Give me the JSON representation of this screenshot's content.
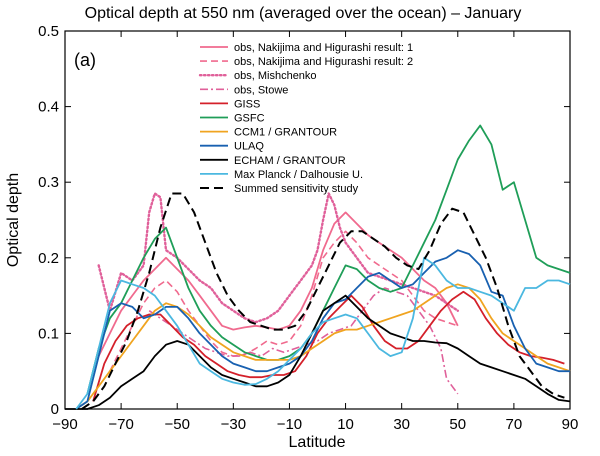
{
  "chart_data": {
    "type": "line",
    "title": "Optical depth at 550 nm (averaged over the ocean) – January",
    "panel_label": "(a)",
    "xlabel": "Latitude",
    "ylabel": "Optical depth",
    "xlim": [
      -90,
      90
    ],
    "ylim": [
      0,
      0.5
    ],
    "xticks": [
      -90,
      -70,
      -50,
      -30,
      -10,
      10,
      30,
      50,
      70,
      90
    ],
    "xtick_labels": [
      "−90",
      "−70",
      "−50",
      "−30",
      "−10",
      "10",
      "30",
      "50",
      "70",
      "90"
    ],
    "yticks": [
      0,
      0.1,
      0.2,
      0.3,
      0.4,
      0.5
    ],
    "ytick_labels": [
      "0",
      "0.1",
      "0.2",
      "0.3",
      "0.4",
      "0.5"
    ],
    "grid": false,
    "legend_position": "top-right",
    "series": [
      {
        "name": "obs, Nakijima and Higurashi result: 1",
        "color": "#f06a8e",
        "dash": "solid",
        "x": [
          -78,
          -74,
          -70,
          -66,
          -62,
          -58,
          -54,
          -50,
          -46,
          -42,
          -38,
          -34,
          -30,
          -26,
          -22,
          -18,
          -14,
          -10,
          -6,
          -2,
          2,
          6,
          10,
          14,
          18,
          22,
          26,
          30,
          34,
          38,
          42,
          46,
          50
        ],
        "y": [
          0.07,
          0.1,
          0.13,
          0.15,
          0.17,
          0.185,
          0.2,
          0.185,
          0.17,
          0.15,
          0.13,
          0.11,
          0.105,
          0.108,
          0.11,
          0.108,
          0.105,
          0.11,
          0.13,
          0.16,
          0.21,
          0.245,
          0.26,
          0.245,
          0.23,
          0.22,
          0.21,
          0.2,
          0.185,
          0.17,
          0.16,
          0.14,
          0.11
        ]
      },
      {
        "name": "obs, Nakijima and Higurashi result: 2",
        "color": "#f06a8e",
        "dash": "dashed",
        "x": [
          -74,
          -70,
          -66,
          -62,
          -58,
          -54,
          -50,
          -46,
          -42,
          -38,
          -34,
          -30,
          -26,
          -22,
          -18,
          -14,
          -10,
          -6,
          -2,
          2,
          6,
          10,
          14,
          18,
          22,
          26,
          30,
          34,
          38,
          42,
          46,
          50
        ],
        "y": [
          0.05,
          0.08,
          0.11,
          0.14,
          0.16,
          0.17,
          0.155,
          0.13,
          0.11,
          0.09,
          0.075,
          0.07,
          0.072,
          0.08,
          0.09,
          0.085,
          0.09,
          0.11,
          0.15,
          0.2,
          0.22,
          0.235,
          0.22,
          0.2,
          0.19,
          0.18,
          0.17,
          0.15,
          0.13,
          0.12,
          0.115,
          0.11
        ]
      },
      {
        "name": "obs, Mishchenko",
        "color": "#e0609a",
        "dash": "dotted",
        "x": [
          -78,
          -74,
          -70,
          -66,
          -62,
          -60,
          -58,
          -56,
          -54,
          -50,
          -46,
          -42,
          -38,
          -34,
          -30,
          -26,
          -22,
          -18,
          -14,
          -10,
          -6,
          -2,
          0,
          2,
          4,
          6,
          8,
          10,
          14,
          18,
          22,
          26,
          30,
          34,
          38,
          42,
          46,
          50
        ],
        "y": [
          0.19,
          0.13,
          0.18,
          0.17,
          0.19,
          0.26,
          0.285,
          0.28,
          0.21,
          0.2,
          0.185,
          0.17,
          0.16,
          0.14,
          0.13,
          0.12,
          0.115,
          0.12,
          0.13,
          0.15,
          0.17,
          0.19,
          0.21,
          0.25,
          0.285,
          0.27,
          0.24,
          0.22,
          0.2,
          0.18,
          0.175,
          0.17,
          0.165,
          0.16,
          0.155,
          0.15,
          0.14,
          0.13
        ]
      },
      {
        "name": "obs, Stowe",
        "color": "#e0609a",
        "dash": "dashdot",
        "x": [
          -60,
          -56,
          -52,
          -48,
          -44,
          -40,
          -36,
          -32,
          -28,
          -24,
          -20,
          -16,
          -12,
          -8,
          -4,
          0,
          4,
          8,
          12,
          16,
          20,
          24,
          28,
          32,
          36,
          40,
          44,
          46,
          48,
          50
        ],
        "y": [
          0.13,
          0.12,
          0.11,
          0.1,
          0.09,
          0.08,
          0.075,
          0.07,
          0.07,
          0.075,
          0.07,
          0.08,
          0.075,
          0.08,
          0.085,
          0.09,
          0.1,
          0.105,
          0.11,
          0.13,
          0.15,
          0.16,
          0.155,
          0.15,
          0.13,
          0.11,
          0.08,
          0.04,
          0.03,
          0.02
        ]
      },
      {
        "name": "GISS",
        "color": "#d4202a",
        "dash": "solid",
        "x": [
          -80,
          -76,
          -72,
          -68,
          -64,
          -60,
          -56,
          -52,
          -48,
          -44,
          -40,
          -36,
          -32,
          -28,
          -24,
          -20,
          -16,
          -12,
          -8,
          -4,
          0,
          4,
          8,
          12,
          16,
          20,
          24,
          28,
          32,
          36,
          40,
          44,
          48,
          52,
          56,
          60,
          64,
          68,
          72,
          76,
          80,
          84,
          88
        ],
        "y": [
          0.01,
          0.06,
          0.09,
          0.11,
          0.12,
          0.125,
          0.125,
          0.11,
          0.095,
          0.085,
          0.07,
          0.06,
          0.05,
          0.045,
          0.042,
          0.042,
          0.045,
          0.045,
          0.05,
          0.07,
          0.1,
          0.12,
          0.135,
          0.15,
          0.135,
          0.11,
          0.09,
          0.08,
          0.08,
          0.09,
          0.11,
          0.13,
          0.145,
          0.155,
          0.145,
          0.12,
          0.1,
          0.085,
          0.075,
          0.07,
          0.068,
          0.065,
          0.06
        ]
      },
      {
        "name": "GSFC",
        "color": "#1f9e58",
        "dash": "solid",
        "x": [
          -82,
          -78,
          -74,
          -70,
          -66,
          -62,
          -58,
          -54,
          -50,
          -46,
          -42,
          -38,
          -34,
          -30,
          -26,
          -22,
          -18,
          -14,
          -10,
          -6,
          -2,
          2,
          6,
          10,
          14,
          18,
          22,
          26,
          30,
          34,
          38,
          42,
          46,
          50,
          54,
          58,
          62,
          66,
          70,
          74,
          78,
          82,
          86,
          90
        ],
        "y": [
          0.02,
          0.08,
          0.12,
          0.14,
          0.17,
          0.2,
          0.225,
          0.24,
          0.2,
          0.16,
          0.13,
          0.11,
          0.095,
          0.085,
          0.075,
          0.07,
          0.065,
          0.065,
          0.07,
          0.08,
          0.1,
          0.13,
          0.16,
          0.19,
          0.185,
          0.17,
          0.16,
          0.155,
          0.16,
          0.19,
          0.22,
          0.25,
          0.29,
          0.33,
          0.355,
          0.375,
          0.35,
          0.29,
          0.3,
          0.25,
          0.2,
          0.19,
          0.185,
          0.18
        ]
      },
      {
        "name": "CCM1 / GRANTOUR",
        "color": "#f0a420",
        "dash": "solid",
        "x": [
          -86,
          -82,
          -78,
          -74,
          -70,
          -66,
          -62,
          -58,
          -54,
          -50,
          -46,
          -42,
          -38,
          -34,
          -30,
          -26,
          -22,
          -18,
          -14,
          -10,
          -6,
          -2,
          2,
          6,
          10,
          14,
          18,
          22,
          26,
          30,
          34,
          38,
          42,
          46,
          50,
          54,
          58,
          62,
          66,
          70,
          74,
          78,
          82,
          86,
          90
        ],
        "y": [
          0.0,
          0.01,
          0.03,
          0.05,
          0.07,
          0.09,
          0.11,
          0.13,
          0.14,
          0.135,
          0.125,
          0.11,
          0.095,
          0.085,
          0.075,
          0.07,
          0.065,
          0.065,
          0.065,
          0.065,
          0.07,
          0.08,
          0.09,
          0.1,
          0.105,
          0.105,
          0.11,
          0.115,
          0.12,
          0.125,
          0.13,
          0.14,
          0.15,
          0.16,
          0.165,
          0.16,
          0.145,
          0.12,
          0.1,
          0.09,
          0.08,
          0.07,
          0.06,
          0.055,
          0.05
        ]
      },
      {
        "name": "ULAQ",
        "color": "#1860b0",
        "dash": "solid",
        "x": [
          -86,
          -82,
          -78,
          -74,
          -70,
          -66,
          -62,
          -58,
          -54,
          -50,
          -46,
          -42,
          -38,
          -34,
          -30,
          -26,
          -22,
          -18,
          -14,
          -10,
          -6,
          -2,
          2,
          6,
          10,
          14,
          18,
          22,
          26,
          30,
          34,
          38,
          42,
          46,
          50,
          54,
          58,
          62,
          66,
          70,
          74,
          78,
          82,
          86,
          90
        ],
        "y": [
          0.0,
          0.01,
          0.07,
          0.13,
          0.14,
          0.135,
          0.12,
          0.125,
          0.135,
          0.135,
          0.12,
          0.1,
          0.085,
          0.07,
          0.06,
          0.055,
          0.05,
          0.05,
          0.055,
          0.06,
          0.07,
          0.09,
          0.12,
          0.14,
          0.145,
          0.16,
          0.175,
          0.18,
          0.17,
          0.16,
          0.165,
          0.18,
          0.195,
          0.2,
          0.21,
          0.205,
          0.19,
          0.155,
          0.15,
          0.11,
          0.08,
          0.06,
          0.055,
          0.05,
          0.05
        ]
      },
      {
        "name": "ECHAM / GRANTOUR",
        "color": "#000000",
        "dash": "solid",
        "x": [
          -90,
          -86,
          -82,
          -78,
          -74,
          -70,
          -66,
          -62,
          -58,
          -54,
          -50,
          -46,
          -42,
          -38,
          -34,
          -30,
          -26,
          -22,
          -18,
          -14,
          -10,
          -6,
          -2,
          2,
          6,
          10,
          14,
          18,
          22,
          26,
          30,
          34,
          38,
          42,
          46,
          50,
          54,
          58,
          62,
          66,
          70,
          74,
          78,
          82,
          86,
          90
        ],
        "y": [
          0.0,
          0.0,
          0.0,
          0.005,
          0.015,
          0.03,
          0.04,
          0.05,
          0.07,
          0.085,
          0.09,
          0.085,
          0.07,
          0.055,
          0.045,
          0.04,
          0.035,
          0.03,
          0.03,
          0.035,
          0.045,
          0.07,
          0.1,
          0.13,
          0.14,
          0.15,
          0.135,
          0.12,
          0.11,
          0.1,
          0.095,
          0.09,
          0.09,
          0.088,
          0.087,
          0.08,
          0.07,
          0.06,
          0.055,
          0.05,
          0.045,
          0.04,
          0.03,
          0.02,
          0.012,
          0.01
        ]
      },
      {
        "name": "Max Planck / Dalhousie U.",
        "color": "#4bb8e0",
        "dash": "solid",
        "x": [
          -86,
          -82,
          -78,
          -74,
          -70,
          -66,
          -62,
          -58,
          -54,
          -50,
          -46,
          -42,
          -38,
          -34,
          -30,
          -26,
          -22,
          -18,
          -14,
          -10,
          -6,
          -2,
          2,
          6,
          10,
          14,
          18,
          22,
          26,
          30,
          34,
          38,
          42,
          46,
          50,
          54,
          58,
          62,
          66,
          70,
          74,
          78,
          82,
          86,
          90
        ],
        "y": [
          0.0,
          0.02,
          0.08,
          0.14,
          0.17,
          0.165,
          0.16,
          0.15,
          0.13,
          0.11,
          0.085,
          0.06,
          0.05,
          0.04,
          0.035,
          0.032,
          0.033,
          0.04,
          0.05,
          0.065,
          0.08,
          0.1,
          0.115,
          0.12,
          0.125,
          0.12,
          0.1,
          0.08,
          0.07,
          0.075,
          0.12,
          0.2,
          0.19,
          0.17,
          0.16,
          0.16,
          0.155,
          0.15,
          0.14,
          0.13,
          0.16,
          0.16,
          0.17,
          0.17,
          0.165
        ]
      },
      {
        "name": "Summed sensitivity study",
        "color": "#000000",
        "dash": "longdash",
        "x": [
          -84,
          -80,
          -76,
          -72,
          -68,
          -64,
          -60,
          -56,
          -52,
          -48,
          -44,
          -40,
          -36,
          -32,
          -28,
          -24,
          -20,
          -16,
          -12,
          -8,
          -4,
          0,
          4,
          8,
          12,
          16,
          20,
          24,
          28,
          32,
          36,
          40,
          44,
          48,
          52,
          56,
          60,
          64,
          68,
          72,
          76,
          80,
          84,
          88
        ],
        "y": [
          0.0,
          0.01,
          0.03,
          0.06,
          0.09,
          0.13,
          0.18,
          0.24,
          0.285,
          0.285,
          0.26,
          0.22,
          0.18,
          0.15,
          0.13,
          0.115,
          0.11,
          0.105,
          0.105,
          0.11,
          0.13,
          0.16,
          0.19,
          0.22,
          0.235,
          0.235,
          0.225,
          0.215,
          0.2,
          0.19,
          0.185,
          0.21,
          0.245,
          0.265,
          0.26,
          0.23,
          0.2,
          0.16,
          0.11,
          0.07,
          0.05,
          0.03,
          0.02,
          0.015
        ]
      }
    ]
  }
}
